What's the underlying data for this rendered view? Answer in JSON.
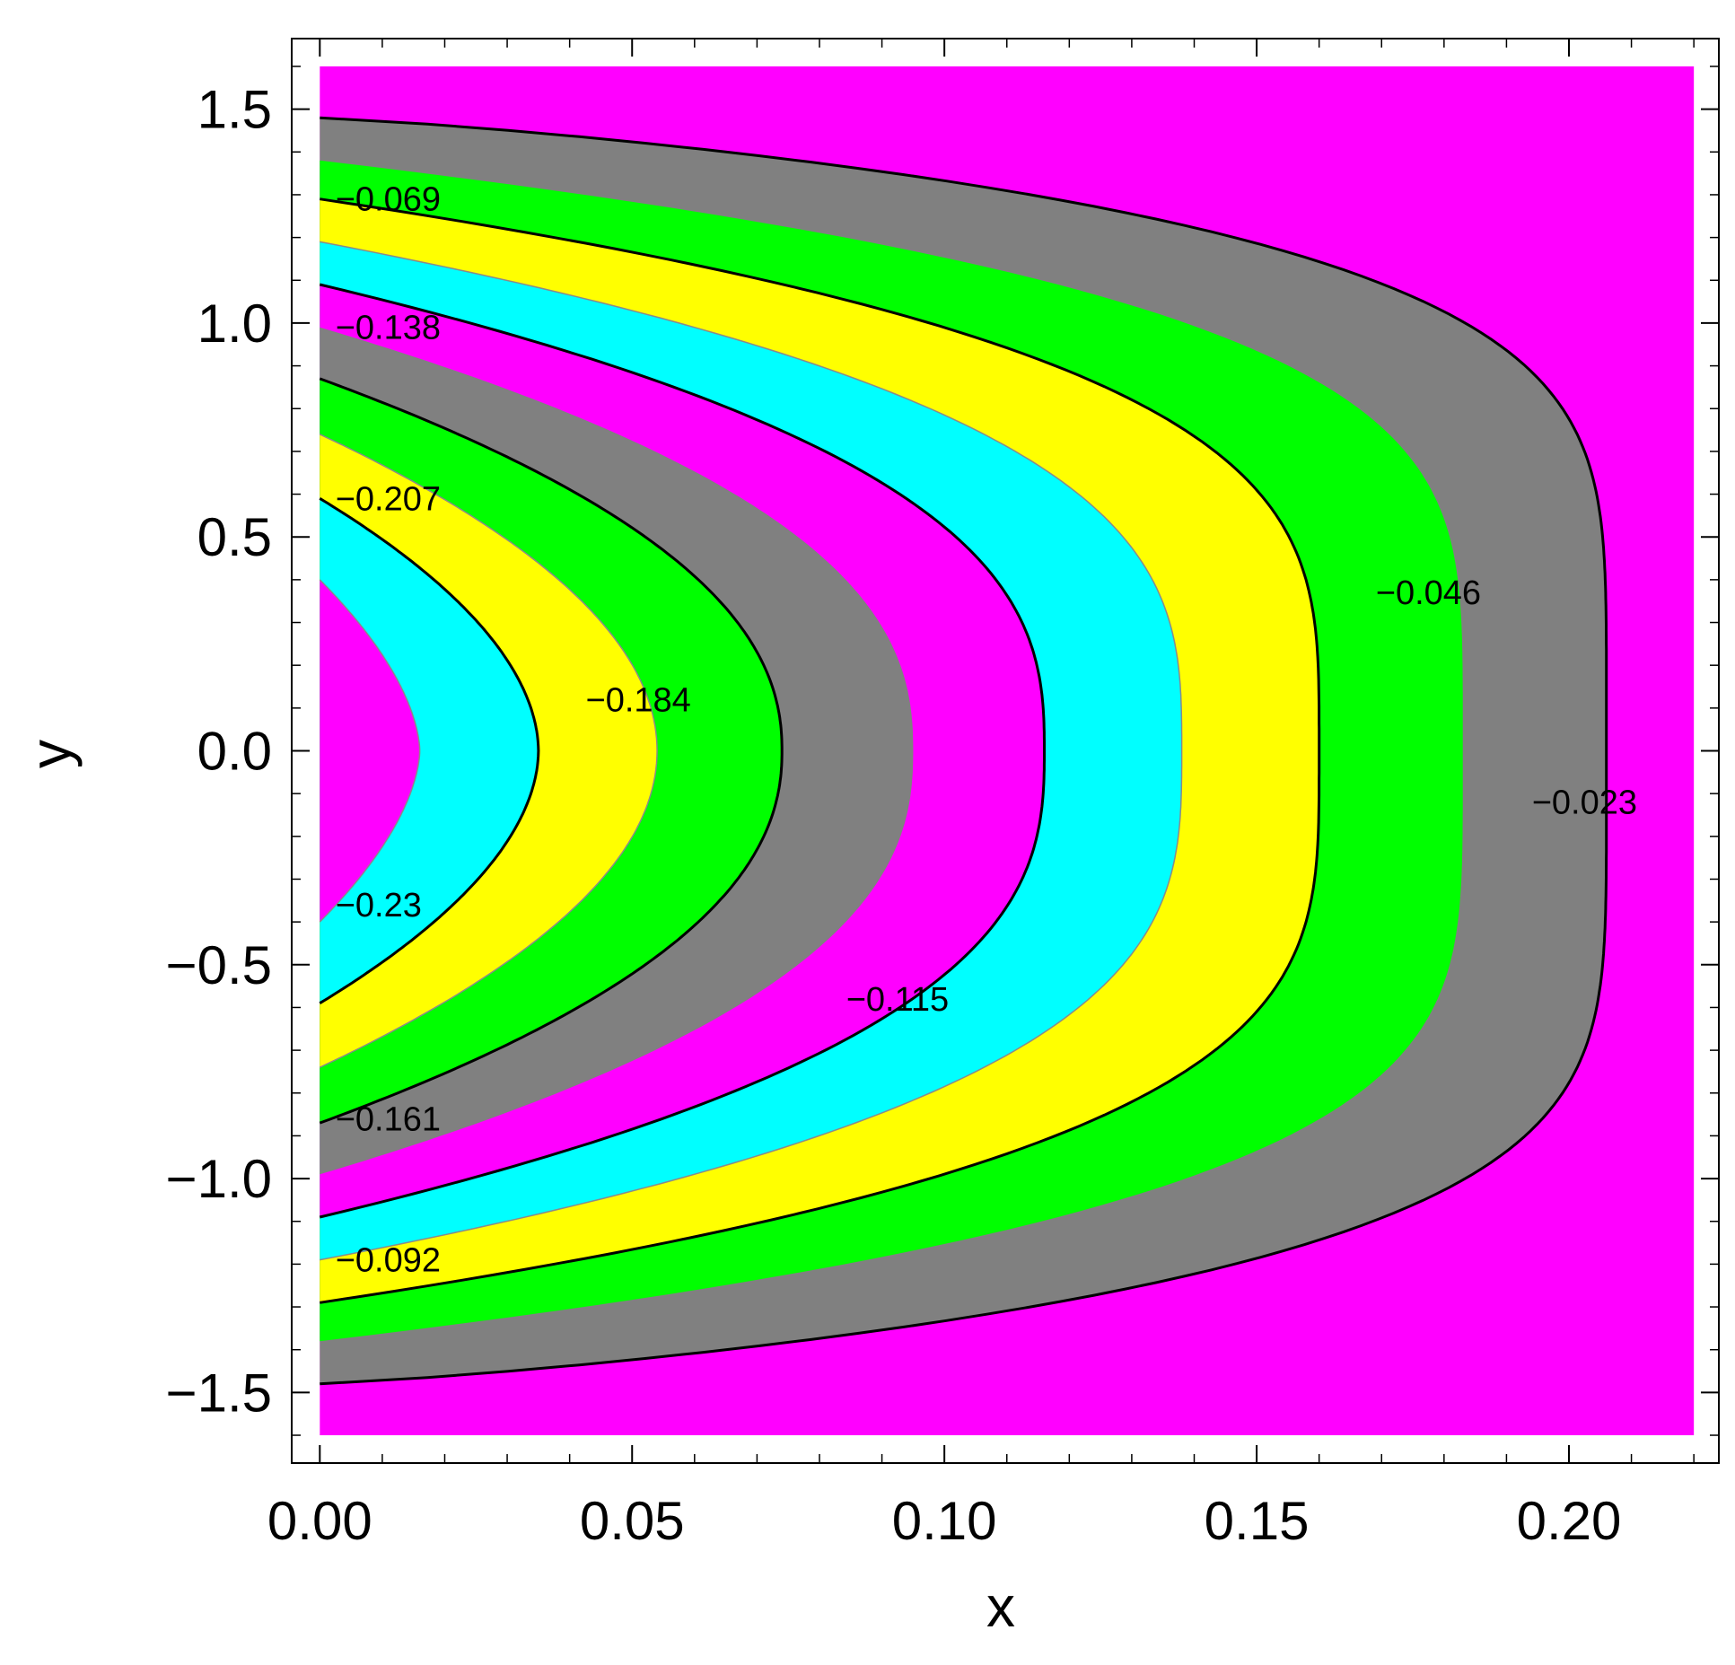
{
  "chart_data": {
    "type": "contour",
    "xlabel": "x",
    "ylabel": "y",
    "xlim": [
      -0.0045,
      0.224
    ],
    "ylim": [
      -1.665,
      1.665
    ],
    "plot_range": {
      "x": [
        0,
        0.22
      ],
      "y": [
        -1.6,
        1.6
      ]
    },
    "x_ticks": [
      {
        "value": 0.0,
        "label": "0.00"
      },
      {
        "value": 0.05,
        "label": "0.05"
      },
      {
        "value": 0.1,
        "label": "0.10"
      },
      {
        "value": 0.15,
        "label": "0.15"
      },
      {
        "value": 0.2,
        "label": "0.20"
      }
    ],
    "y_ticks": [
      {
        "value": 1.5,
        "label": "1.5"
      },
      {
        "value": 1.0,
        "label": "1.0"
      },
      {
        "value": 0.5,
        "label": "0.5"
      },
      {
        "value": 0.0,
        "label": "0.0"
      },
      {
        "value": -0.5,
        "label": "−0.5"
      },
      {
        "value": -1.0,
        "label": "−1.0"
      },
      {
        "value": -1.5,
        "label": "−1.5"
      }
    ],
    "band_colors_outer_to_inner": [
      "#ff00ff",
      "#808080",
      "#00ff00",
      "#ffff00",
      "#00ffff",
      "#ff00ff",
      "#808080",
      "#00ff00",
      "#ffff00",
      "#00ffff",
      "#ff00ff"
    ],
    "contours": [
      {
        "level": -0.023,
        "x_tip": 0.206,
        "y_edge": 1.48,
        "width": 1.2,
        "p": 5.2,
        "line": "black"
      },
      {
        "level": null,
        "x_tip": 0.183,
        "y_edge": 1.38,
        "width": 1.0,
        "p": 4.4,
        "line": "none"
      },
      {
        "level": -0.046,
        "x_tip": 0.16,
        "y_edge": 1.29,
        "width": 1.0,
        "p": 3.7,
        "line": "black"
      },
      {
        "level": null,
        "x_tip": 0.138,
        "y_edge": 1.19,
        "width": 1.0,
        "p": 3.1,
        "line": "gray"
      },
      {
        "level": -0.092,
        "x_tip": 0.116,
        "y_edge": 1.09,
        "width": 1.0,
        "p": 2.7,
        "line": "black"
      },
      {
        "level": null,
        "x_tip": 0.095,
        "y_edge": 0.99,
        "width": 1.0,
        "p": 2.4,
        "line": "none"
      },
      {
        "level": -0.138,
        "x_tip": 0.074,
        "y_edge": 0.87,
        "width": 1.0,
        "p": 2.2,
        "line": "black"
      },
      {
        "level": null,
        "x_tip": 0.054,
        "y_edge": 0.74,
        "width": 1.0,
        "p": 2.0,
        "line": "gray"
      },
      {
        "level": -0.184,
        "x_tip": 0.035,
        "y_edge": 0.59,
        "width": 1.0,
        "p": 1.9,
        "line": "black"
      },
      {
        "level": null,
        "x_tip": 0.016,
        "y_edge": 0.4,
        "width": 1.0,
        "p": 1.7,
        "line": "gray"
      }
    ],
    "contour_labels": [
      {
        "text": "−0.023",
        "x": 0.2025,
        "y": -0.12
      },
      {
        "text": "−0.046",
        "x": 0.1775,
        "y": 0.37
      },
      {
        "text": "−0.115",
        "x": 0.0925,
        "y": -0.58
      },
      {
        "text": "−0.184",
        "x": 0.051,
        "y": 0.12
      },
      {
        "text": "−0.069",
        "x": 0.0025,
        "y": 1.29
      },
      {
        "text": "−0.138",
        "x": 0.0025,
        "y": 0.99
      },
      {
        "text": "−0.207",
        "x": 0.0025,
        "y": 0.59
      },
      {
        "text": "−0.23",
        "x": 0.0025,
        "y": -0.36
      },
      {
        "text": "−0.161",
        "x": 0.0025,
        "y": -0.86
      },
      {
        "text": "−0.092",
        "x": 0.0025,
        "y": -1.19
      }
    ]
  }
}
